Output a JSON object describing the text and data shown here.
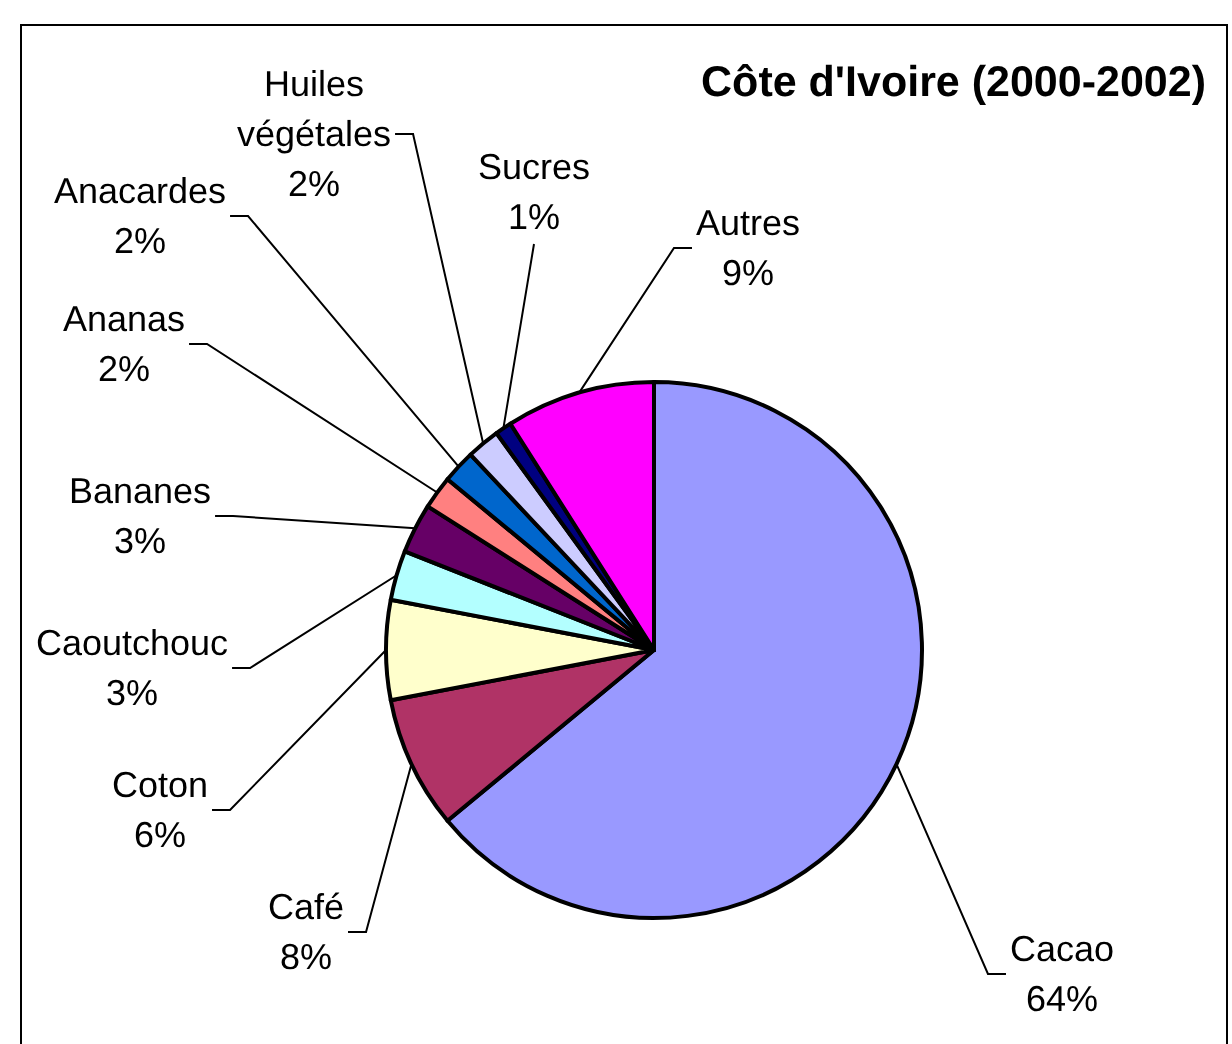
{
  "chart_data": {
    "type": "pie",
    "title": "Côte d'Ivoire (2000-2002)",
    "categories": [
      "Cacao",
      "Café",
      "Coton",
      "Caoutchouc",
      "Bananes",
      "Ananas",
      "Anacardes",
      "Huiles végétales",
      "Sucres",
      "Autres"
    ],
    "values": [
      64,
      8,
      6,
      3,
      3,
      2,
      2,
      2,
      1,
      9
    ],
    "value_labels": [
      "64%",
      "8%",
      "6%",
      "3%",
      "3%",
      "2%",
      "2%",
      "2%",
      "1%",
      "9%"
    ],
    "colors": [
      "#9999ff",
      "#b03366",
      "#ffffcc",
      "#b3ffff",
      "#660066",
      "#ff8080",
      "#0066cc",
      "#ccccff",
      "#000080",
      "#ff00ff"
    ]
  }
}
